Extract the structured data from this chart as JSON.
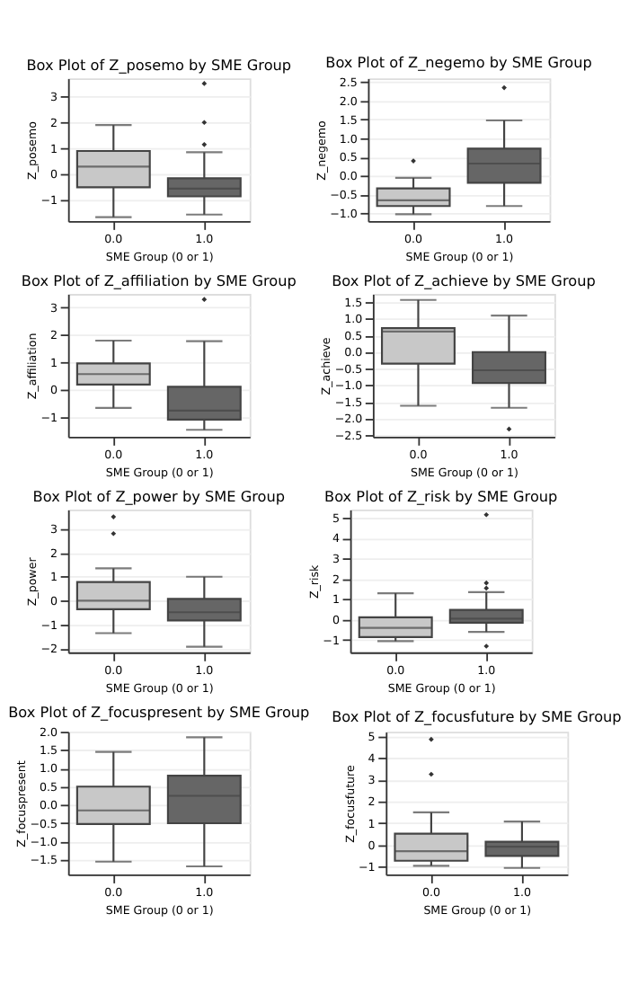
{
  "chart_data": [
    {
      "type": "box",
      "title": "Box Plot of Z_posemo by SME Group",
      "xlabel": "SME Group (0 or 1)",
      "ylabel": "Z_posemo",
      "categories": [
        "0.0",
        "1.0"
      ],
      "colors": [
        "#c8c8c8",
        "#666666"
      ],
      "ylim": [
        -1.8,
        3.7
      ],
      "yticks": [
        -1,
        0,
        1,
        2,
        3
      ],
      "grid": "y",
      "boxes": [
        {
          "low": -1.65,
          "q1": -0.5,
          "median": 0.3,
          "q3": 0.9,
          "high": 1.9
        },
        {
          "low": -1.55,
          "q1": -0.85,
          "median": -0.55,
          "q3": -0.15,
          "high": 0.85,
          "outliers": [
            1.15,
            2.0,
            3.5
          ]
        }
      ]
    },
    {
      "type": "box",
      "title": "Box Plot of Z_negemo by SME Group",
      "xlabel": "SME Group (0 or 1)",
      "ylabel": "Z_negemo",
      "categories": [
        "0.0",
        "1.0"
      ],
      "colors": [
        "#c8c8c8",
        "#666666"
      ],
      "ylim": [
        -1.2,
        2.6
      ],
      "yticks": [
        {
          "value": -1,
          "label": "−1.0"
        },
        -0.5,
        {
          "value": 0,
          "label": "0.0"
        },
        0.5,
        {
          "value": 1,
          "label": "1.0"
        },
        1.5,
        {
          "value": 2,
          "label": "2.0"
        },
        2.5
      ],
      "grid": "y",
      "boxes": [
        {
          "low": -1.02,
          "q1": -0.8,
          "median": -0.65,
          "q3": -0.33,
          "high": -0.05,
          "outliers": [
            0.4
          ]
        },
        {
          "low": -0.8,
          "q1": -0.18,
          "median": 0.33,
          "q3": 0.73,
          "high": 1.48,
          "outliers": [
            2.35
          ]
        }
      ]
    },
    {
      "type": "box",
      "title": "Box Plot of Z_affiliation by SME Group",
      "xlabel": "SME Group (0 or 1)",
      "ylabel": "Z_affiliation",
      "categories": [
        "0.0",
        "1.0"
      ],
      "colors": [
        "#c8c8c8",
        "#666666"
      ],
      "ylim": [
        -1.7,
        3.5
      ],
      "yticks": [
        -1,
        0,
        1,
        2,
        3
      ],
      "grid": "y",
      "boxes": [
        {
          "low": -0.65,
          "q1": 0.2,
          "median": 0.58,
          "q3": 0.97,
          "high": 1.8
        },
        {
          "low": -1.45,
          "q1": -1.08,
          "median": -0.75,
          "q3": 0.12,
          "high": 1.78,
          "outliers": [
            3.3
          ]
        }
      ]
    },
    {
      "type": "box",
      "title": "Box Plot of Z_achieve by SME Group",
      "xlabel": "SME Group (0 or 1)",
      "ylabel": "Z_achieve",
      "categories": [
        "0.0",
        "1.0"
      ],
      "colors": [
        "#c8c8c8",
        "#666666"
      ],
      "ylim": [
        -2.55,
        1.75
      ],
      "yticks": [
        -2.5,
        {
          "value": -2,
          "label": "−2.0"
        },
        -1.5,
        {
          "value": -1,
          "label": "−1.0"
        },
        -0.5,
        {
          "value": 0,
          "label": "0.0"
        },
        0.5,
        {
          "value": 1,
          "label": "1.0"
        },
        1.5
      ],
      "grid": "y",
      "boxes": [
        {
          "low": -1.62,
          "q1": -0.35,
          "median": 0.62,
          "q3": 0.72,
          "high": 1.57
        },
        {
          "low": -1.68,
          "q1": -0.93,
          "median": -0.55,
          "q3": 0.0,
          "high": 1.1,
          "outliers": [
            -2.32
          ]
        }
      ]
    },
    {
      "type": "box",
      "title": "Box Plot of Z_power by SME Group",
      "xlabel": "SME Group (0 or 1)",
      "ylabel": "Z_power",
      "categories": [
        "0.0",
        "1.0"
      ],
      "colors": [
        "#c8c8c8",
        "#666666"
      ],
      "ylim": [
        -2.15,
        3.8
      ],
      "yticks": [
        -2,
        -1,
        0,
        1,
        2,
        3
      ],
      "grid": "y",
      "boxes": [
        {
          "low": -1.35,
          "q1": -0.35,
          "median": 0.0,
          "q3": 0.78,
          "high": 1.35,
          "outliers": [
            2.8,
            3.5
          ]
        },
        {
          "low": -1.92,
          "q1": -0.82,
          "median": -0.48,
          "q3": 0.08,
          "high": 1.0
        }
      ]
    },
    {
      "type": "box",
      "title": "Box Plot of Z_risk by SME Group",
      "xlabel": "SME Group (0 or 1)",
      "ylabel": "Z_risk",
      "categories": [
        "0.0",
        "1.0"
      ],
      "colors": [
        "#c8c8c8",
        "#666666"
      ],
      "ylim": [
        -1.6,
        5.4
      ],
      "yticks": [
        -1,
        0,
        1,
        2,
        3,
        4,
        5
      ],
      "grid": "y",
      "boxes": [
        {
          "low": -1.05,
          "q1": -0.85,
          "median": -0.4,
          "q3": 0.12,
          "high": 1.3
        },
        {
          "low": -0.6,
          "q1": -0.15,
          "median": 0.05,
          "q3": 0.48,
          "high": 1.35,
          "outliers": [
            -1.3,
            1.55,
            1.8,
            5.15
          ]
        }
      ]
    },
    {
      "type": "box",
      "title": "Box Plot of Z_focuspresent by SME Group",
      "xlabel": "SME Group (0 or 1)",
      "ylabel": "Z_focuspresent",
      "categories": [
        "0.0",
        "1.0"
      ],
      "colors": [
        "#c8c8c8",
        "#666666"
      ],
      "ylim": [
        -1.9,
        2.0
      ],
      "yticks": [
        -1.5,
        {
          "value": -1,
          "label": "−1.0"
        },
        -0.5,
        {
          "value": 0,
          "label": "0.0"
        },
        0.5,
        {
          "value": 1,
          "label": "1.0"
        },
        1.5,
        {
          "value": 2,
          "label": "2.0"
        }
      ],
      "grid": "y",
      "boxes": [
        {
          "low": -1.55,
          "q1": -0.52,
          "median": -0.15,
          "q3": 0.5,
          "high": 1.45
        },
        {
          "low": -1.68,
          "q1": -0.5,
          "median": 0.25,
          "q3": 0.8,
          "high": 1.85
        }
      ]
    },
    {
      "type": "box",
      "title": "Box Plot of Z_focusfuture by SME Group",
      "xlabel": "SME Group (0 or 1)",
      "ylabel": "Z_focusfuture",
      "categories": [
        "0.0",
        "1.0"
      ],
      "colors": [
        "#c8c8c8",
        "#666666"
      ],
      "ylim": [
        -1.35,
        5.2
      ],
      "yticks": [
        -1,
        0,
        1,
        2,
        3,
        4,
        5
      ],
      "grid": "y",
      "boxes": [
        {
          "low": -0.95,
          "q1": -0.72,
          "median": -0.28,
          "q3": 0.52,
          "high": 1.5,
          "outliers": [
            3.25,
            4.85
          ]
        },
        {
          "low": -1.05,
          "q1": -0.5,
          "median": -0.08,
          "q3": 0.15,
          "high": 1.08
        }
      ]
    }
  ]
}
